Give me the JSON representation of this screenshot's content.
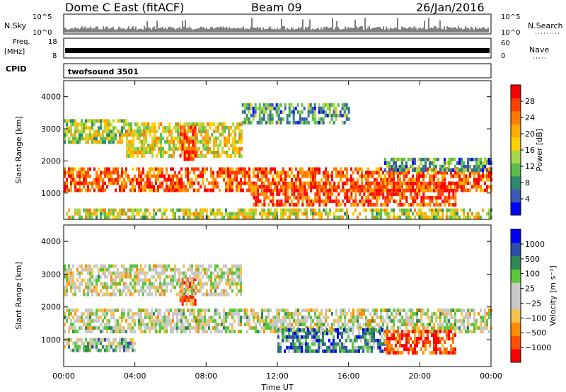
{
  "header": {
    "title": "Dome C East (fitACF)",
    "beam": "Beam 09",
    "date": "26/Jan/2016"
  },
  "strip_panels": {
    "nsky": {
      "label": "N.Sky",
      "ticks": [
        "10^5",
        "10^0"
      ],
      "right_label": "N.Search",
      "right_ticks": [
        "10^5",
        "10^0"
      ]
    },
    "freq": {
      "label_top": "Freq.",
      "label_bottom": "[MHz]",
      "ticks": [
        "18",
        "8"
      ],
      "right_label": "Nave",
      "right_ticks": [
        "60",
        "0"
      ]
    },
    "cpid": {
      "label": "CPID",
      "value": "twofsound 3501"
    }
  },
  "chart_data": [
    {
      "type": "heatmap",
      "name": "power",
      "ylabel": "Slant Range [km]",
      "yticks": [
        "4000",
        "3000",
        "2000",
        "1000"
      ],
      "ytick_values": [
        4000,
        3000,
        2000,
        1000
      ],
      "ylim": [
        180,
        4500
      ],
      "xlim": [
        0,
        24
      ],
      "colorbar": {
        "label": "Power [dB]",
        "ticks": [
          "28",
          "24",
          "20",
          "16",
          "12",
          "8",
          "4"
        ],
        "colors": [
          "#0000ff",
          "#3c5ab4",
          "#2d8a6e",
          "#5cbe4a",
          "#a8d848",
          "#ffd000",
          "#ffaa00",
          "#ff7a00",
          "#ff4000",
          "#ff0000"
        ]
      },
      "bands": [
        {
          "t0": 0,
          "t1": 24,
          "r0": 1050,
          "r1": 1800,
          "level": 0.8
        },
        {
          "t0": 0,
          "t1": 3.5,
          "r0": 2550,
          "r1": 3300,
          "level": 0.45
        },
        {
          "t0": 3.5,
          "t1": 10,
          "r0": 2200,
          "r1": 3200,
          "level": 0.55
        },
        {
          "t0": 6.5,
          "t1": 7.4,
          "r0": 2000,
          "r1": 3100,
          "level": 0.9
        },
        {
          "t0": 10.5,
          "t1": 22,
          "r0": 650,
          "r1": 1350,
          "level": 0.85
        },
        {
          "t0": 18,
          "t1": 24,
          "r0": 1700,
          "r1": 2100,
          "level": 0.3
        },
        {
          "t0": 0,
          "t1": 24,
          "r0": 200,
          "r1": 520,
          "level": 0.5
        },
        {
          "t0": 10,
          "t1": 16,
          "r0": 3200,
          "r1": 3800,
          "level": 0.3
        }
      ]
    },
    {
      "type": "heatmap",
      "name": "velocity",
      "ylabel": "Slant Range [km]",
      "yticks": [
        "4000",
        "3000",
        "2000",
        "1000"
      ],
      "ytick_values": [
        4000,
        3000,
        2000,
        1000
      ],
      "ylim": [
        180,
        4500
      ],
      "xlim": [
        0,
        24
      ],
      "xticks": [
        "00:00",
        "04:00",
        "08:00",
        "12:00",
        "16:00",
        "20:00",
        "00:00"
      ],
      "xtick_values": [
        0,
        4,
        8,
        12,
        16,
        20,
        24
      ],
      "xlabel": "Time UT",
      "colorbar": {
        "label": "Velocity [m s⁻¹]",
        "ticks": [
          "1000",
          "500",
          "100",
          "25",
          "−25",
          "−100",
          "−500",
          "−1000"
        ],
        "colors": [
          "#ff0000",
          "#ff5000",
          "#ff8c00",
          "#f2c24a",
          "#c8c8c8",
          "#c8c8c8",
          "#58c83a",
          "#2e8a56",
          "#2a50a8",
          "#0000ff"
        ]
      },
      "bands": [
        {
          "t0": 0,
          "t1": 24,
          "r0": 1250,
          "r1": 1950,
          "level": 0.5
        },
        {
          "t0": 12,
          "t1": 18,
          "r0": 650,
          "r1": 1350,
          "level": 0.75
        },
        {
          "t0": 18,
          "t1": 22,
          "r0": 650,
          "r1": 1300,
          "level": 0.15
        },
        {
          "t0": 0,
          "t1": 4,
          "r0": 650,
          "r1": 1050,
          "level": 0.6
        },
        {
          "t0": 6.5,
          "t1": 7.4,
          "r0": 2100,
          "r1": 2900,
          "level": 0.2
        },
        {
          "t0": 0,
          "t1": 10,
          "r0": 2400,
          "r1": 3300,
          "level": 0.48
        }
      ]
    }
  ]
}
